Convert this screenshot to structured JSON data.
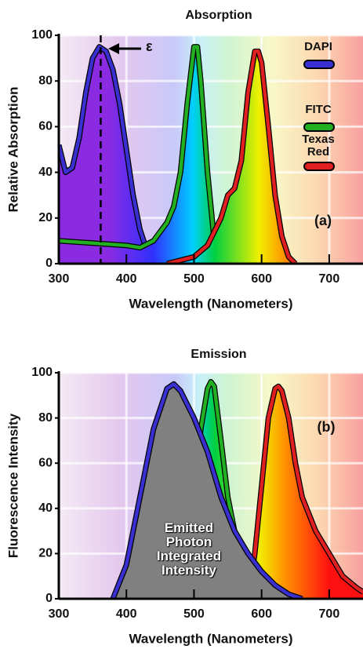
{
  "chart_data": [
    {
      "type": "line",
      "title": "Absorption",
      "xlabel": "Wavelength (Nanometers)",
      "ylabel": "Relative Absorption",
      "xlim": [
        300,
        750
      ],
      "ylim": [
        0,
        100
      ],
      "xticks": [
        300,
        400,
        500,
        600,
        700
      ],
      "yticks": [
        0,
        20,
        40,
        60,
        80,
        100
      ],
      "grid": true,
      "legend": true,
      "ref_x": 362,
      "annotations": [
        "ε",
        "(a)"
      ],
      "series": [
        {
          "name": "DAPI",
          "color": "#3a2fd0",
          "fill": "spectrum",
          "x": [
            300,
            310,
            320,
            330,
            340,
            350,
            360,
            370,
            380,
            390,
            400,
            410,
            420,
            430,
            440,
            450
          ],
          "values": [
            52,
            40,
            42,
            55,
            75,
            90,
            95,
            93,
            85,
            70,
            50,
            30,
            15,
            6,
            2,
            0
          ]
        },
        {
          "name": "FITC",
          "color": "#22b022",
          "fill": "spectrum",
          "x": [
            300,
            350,
            400,
            420,
            440,
            460,
            470,
            480,
            490,
            500,
            505,
            510,
            520,
            530,
            540,
            550
          ],
          "values": [
            10,
            9,
            8,
            7,
            10,
            18,
            25,
            40,
            70,
            95,
            95,
            80,
            40,
            10,
            2,
            0
          ]
        },
        {
          "name": "Texas Red",
          "color": "#e02020",
          "fill": "spectrum",
          "x": [
            460,
            500,
            520,
            540,
            550,
            560,
            570,
            580,
            590,
            595,
            600,
            610,
            620,
            630,
            640,
            650
          ],
          "values": [
            0,
            3,
            8,
            20,
            30,
            33,
            45,
            75,
            93,
            93,
            88,
            60,
            30,
            12,
            3,
            0
          ]
        }
      ]
    },
    {
      "type": "line",
      "title": "Emission",
      "xlabel": "Wavelength (Nanometers)",
      "ylabel": "Fluorescence Intensity",
      "xlim": [
        300,
        750
      ],
      "ylim": [
        0,
        100
      ],
      "xticks": [
        300,
        400,
        500,
        600,
        700
      ],
      "yticks": [
        0,
        20,
        40,
        60,
        80,
        100
      ],
      "grid": true,
      "legend": false,
      "annotations": [
        "(b)",
        "Emitted Photon Integrated Intensity"
      ],
      "series": [
        {
          "name": "FITC",
          "color": "#22b022",
          "fill": "spectrum",
          "x": [
            470,
            490,
            500,
            510,
            520,
            525,
            530,
            540,
            550,
            560,
            580,
            600,
            620,
            650
          ],
          "values": [
            0,
            15,
            40,
            75,
            93,
            96,
            94,
            70,
            45,
            30,
            18,
            10,
            5,
            0
          ]
        },
        {
          "name": "Texas Red",
          "color": "#e02020",
          "fill": "spectrum",
          "x": [
            580,
            590,
            600,
            610,
            620,
            625,
            630,
            640,
            650,
            660,
            680,
            700,
            720,
            740,
            750
          ],
          "values": [
            0,
            20,
            50,
            80,
            93,
            94,
            92,
            80,
            60,
            45,
            30,
            20,
            10,
            5,
            3
          ]
        },
        {
          "name": "DAPI",
          "color": "#3a2fd0",
          "fill": "#808080",
          "x": [
            380,
            400,
            420,
            440,
            460,
            470,
            480,
            500,
            520,
            540,
            560,
            580,
            600,
            620,
            640,
            660
          ],
          "values": [
            0,
            15,
            45,
            75,
            93,
            95,
            92,
            80,
            65,
            45,
            30,
            20,
            12,
            6,
            2,
            0
          ]
        }
      ]
    }
  ]
}
